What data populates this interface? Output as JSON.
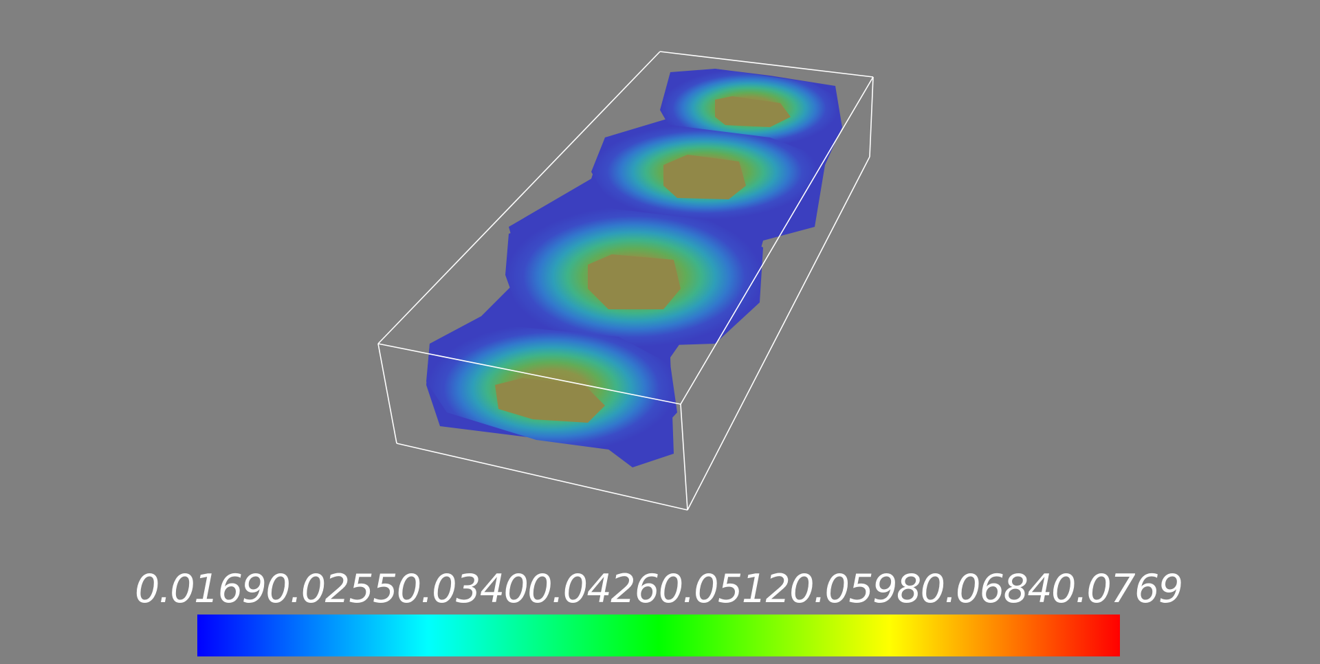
{
  "scene": {
    "background": "#808080",
    "outline_color": "#ffffff",
    "field_opacity": 0.8,
    "lobe_count": 4
  },
  "legend": {
    "tick_labels": [
      "0.0169",
      "0.0255",
      "0.0340",
      "0.0426",
      "0.0512",
      "0.0598",
      "0.0684",
      "0.0769"
    ],
    "colormap": [
      "#0000ff",
      "#0080ff",
      "#00ffff",
      "#00ff80",
      "#00ff00",
      "#80ff00",
      "#ffff00",
      "#ff8000",
      "#ff0000"
    ],
    "label_color": "#ffffff"
  }
}
